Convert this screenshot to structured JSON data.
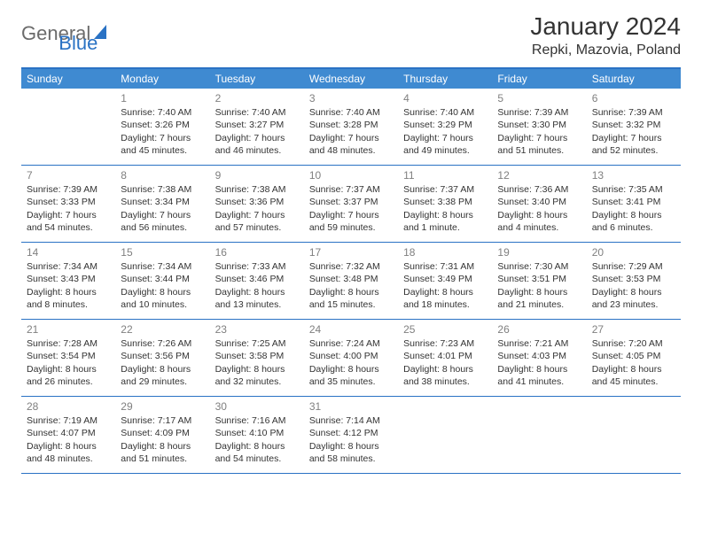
{
  "logo": {
    "part1": "General",
    "part2": "Blue"
  },
  "title": "January 2024",
  "location": "Repki, Mazovia, Poland",
  "colors": {
    "header_bg": "#3f8ad1",
    "border": "#2a72c4",
    "text": "#333333",
    "daynum": "#808080",
    "bg": "#ffffff"
  },
  "typography": {
    "title_fontsize": 28,
    "location_fontsize": 16,
    "dow_fontsize": 12,
    "cell_fontsize": 10.5,
    "daynum_fontsize": 12
  },
  "dow": [
    "Sunday",
    "Monday",
    "Tuesday",
    "Wednesday",
    "Thursday",
    "Friday",
    "Saturday"
  ],
  "weeks": [
    [
      {
        "n": "",
        "sr": "",
        "ss": "",
        "dl": ""
      },
      {
        "n": "1",
        "sr": "Sunrise: 7:40 AM",
        "ss": "Sunset: 3:26 PM",
        "dl": "Daylight: 7 hours and 45 minutes."
      },
      {
        "n": "2",
        "sr": "Sunrise: 7:40 AM",
        "ss": "Sunset: 3:27 PM",
        "dl": "Daylight: 7 hours and 46 minutes."
      },
      {
        "n": "3",
        "sr": "Sunrise: 7:40 AM",
        "ss": "Sunset: 3:28 PM",
        "dl": "Daylight: 7 hours and 48 minutes."
      },
      {
        "n": "4",
        "sr": "Sunrise: 7:40 AM",
        "ss": "Sunset: 3:29 PM",
        "dl": "Daylight: 7 hours and 49 minutes."
      },
      {
        "n": "5",
        "sr": "Sunrise: 7:39 AM",
        "ss": "Sunset: 3:30 PM",
        "dl": "Daylight: 7 hours and 51 minutes."
      },
      {
        "n": "6",
        "sr": "Sunrise: 7:39 AM",
        "ss": "Sunset: 3:32 PM",
        "dl": "Daylight: 7 hours and 52 minutes."
      }
    ],
    [
      {
        "n": "7",
        "sr": "Sunrise: 7:39 AM",
        "ss": "Sunset: 3:33 PM",
        "dl": "Daylight: 7 hours and 54 minutes."
      },
      {
        "n": "8",
        "sr": "Sunrise: 7:38 AM",
        "ss": "Sunset: 3:34 PM",
        "dl": "Daylight: 7 hours and 56 minutes."
      },
      {
        "n": "9",
        "sr": "Sunrise: 7:38 AM",
        "ss": "Sunset: 3:36 PM",
        "dl": "Daylight: 7 hours and 57 minutes."
      },
      {
        "n": "10",
        "sr": "Sunrise: 7:37 AM",
        "ss": "Sunset: 3:37 PM",
        "dl": "Daylight: 7 hours and 59 minutes."
      },
      {
        "n": "11",
        "sr": "Sunrise: 7:37 AM",
        "ss": "Sunset: 3:38 PM",
        "dl": "Daylight: 8 hours and 1 minute."
      },
      {
        "n": "12",
        "sr": "Sunrise: 7:36 AM",
        "ss": "Sunset: 3:40 PM",
        "dl": "Daylight: 8 hours and 4 minutes."
      },
      {
        "n": "13",
        "sr": "Sunrise: 7:35 AM",
        "ss": "Sunset: 3:41 PM",
        "dl": "Daylight: 8 hours and 6 minutes."
      }
    ],
    [
      {
        "n": "14",
        "sr": "Sunrise: 7:34 AM",
        "ss": "Sunset: 3:43 PM",
        "dl": "Daylight: 8 hours and 8 minutes."
      },
      {
        "n": "15",
        "sr": "Sunrise: 7:34 AM",
        "ss": "Sunset: 3:44 PM",
        "dl": "Daylight: 8 hours and 10 minutes."
      },
      {
        "n": "16",
        "sr": "Sunrise: 7:33 AM",
        "ss": "Sunset: 3:46 PM",
        "dl": "Daylight: 8 hours and 13 minutes."
      },
      {
        "n": "17",
        "sr": "Sunrise: 7:32 AM",
        "ss": "Sunset: 3:48 PM",
        "dl": "Daylight: 8 hours and 15 minutes."
      },
      {
        "n": "18",
        "sr": "Sunrise: 7:31 AM",
        "ss": "Sunset: 3:49 PM",
        "dl": "Daylight: 8 hours and 18 minutes."
      },
      {
        "n": "19",
        "sr": "Sunrise: 7:30 AM",
        "ss": "Sunset: 3:51 PM",
        "dl": "Daylight: 8 hours and 21 minutes."
      },
      {
        "n": "20",
        "sr": "Sunrise: 7:29 AM",
        "ss": "Sunset: 3:53 PM",
        "dl": "Daylight: 8 hours and 23 minutes."
      }
    ],
    [
      {
        "n": "21",
        "sr": "Sunrise: 7:28 AM",
        "ss": "Sunset: 3:54 PM",
        "dl": "Daylight: 8 hours and 26 minutes."
      },
      {
        "n": "22",
        "sr": "Sunrise: 7:26 AM",
        "ss": "Sunset: 3:56 PM",
        "dl": "Daylight: 8 hours and 29 minutes."
      },
      {
        "n": "23",
        "sr": "Sunrise: 7:25 AM",
        "ss": "Sunset: 3:58 PM",
        "dl": "Daylight: 8 hours and 32 minutes."
      },
      {
        "n": "24",
        "sr": "Sunrise: 7:24 AM",
        "ss": "Sunset: 4:00 PM",
        "dl": "Daylight: 8 hours and 35 minutes."
      },
      {
        "n": "25",
        "sr": "Sunrise: 7:23 AM",
        "ss": "Sunset: 4:01 PM",
        "dl": "Daylight: 8 hours and 38 minutes."
      },
      {
        "n": "26",
        "sr": "Sunrise: 7:21 AM",
        "ss": "Sunset: 4:03 PM",
        "dl": "Daylight: 8 hours and 41 minutes."
      },
      {
        "n": "27",
        "sr": "Sunrise: 7:20 AM",
        "ss": "Sunset: 4:05 PM",
        "dl": "Daylight: 8 hours and 45 minutes."
      }
    ],
    [
      {
        "n": "28",
        "sr": "Sunrise: 7:19 AM",
        "ss": "Sunset: 4:07 PM",
        "dl": "Daylight: 8 hours and 48 minutes."
      },
      {
        "n": "29",
        "sr": "Sunrise: 7:17 AM",
        "ss": "Sunset: 4:09 PM",
        "dl": "Daylight: 8 hours and 51 minutes."
      },
      {
        "n": "30",
        "sr": "Sunrise: 7:16 AM",
        "ss": "Sunset: 4:10 PM",
        "dl": "Daylight: 8 hours and 54 minutes."
      },
      {
        "n": "31",
        "sr": "Sunrise: 7:14 AM",
        "ss": "Sunset: 4:12 PM",
        "dl": "Daylight: 8 hours and 58 minutes."
      },
      {
        "n": "",
        "sr": "",
        "ss": "",
        "dl": ""
      },
      {
        "n": "",
        "sr": "",
        "ss": "",
        "dl": ""
      },
      {
        "n": "",
        "sr": "",
        "ss": "",
        "dl": ""
      }
    ]
  ]
}
